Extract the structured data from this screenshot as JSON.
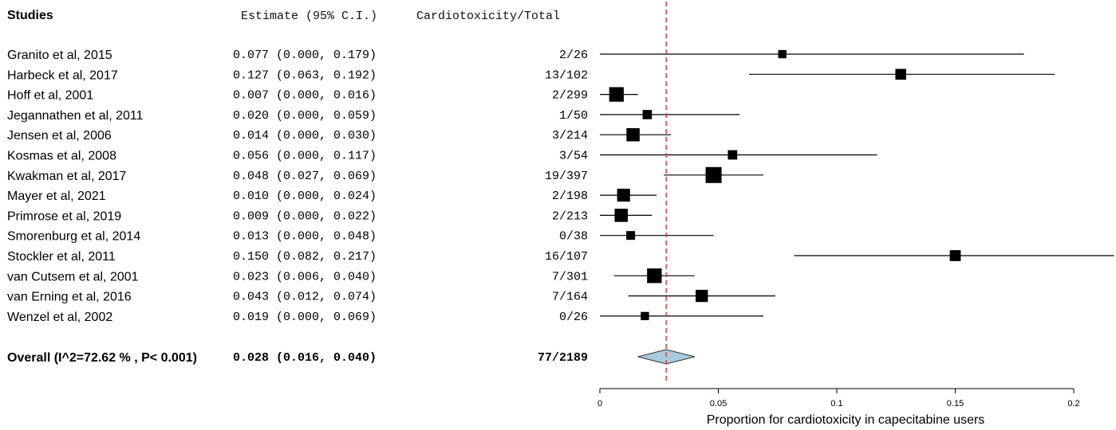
{
  "chart_data": {
    "type": "forest",
    "headers": {
      "studies": "Studies",
      "estimate": "Estimate (95% C.I.)",
      "events": "Cardiotoxicity/Total"
    },
    "studies": [
      {
        "label": "Granito et al, 2015",
        "estimate": 0.077,
        "lower": 0.0,
        "upper": 0.179,
        "ci_text": "0.077 (0.000, 0.179)",
        "events": "2/26",
        "weight": 26
      },
      {
        "label": "Harbeck et al, 2017",
        "estimate": 0.127,
        "lower": 0.063,
        "upper": 0.192,
        "ci_text": "0.127 (0.063, 0.192)",
        "events": "13/102",
        "weight": 102
      },
      {
        "label": "Hoff et al, 2001",
        "estimate": 0.007,
        "lower": 0.0,
        "upper": 0.016,
        "ci_text": "0.007 (0.000, 0.016)",
        "events": "2/299",
        "weight": 299
      },
      {
        "label": "Jegannathen et al, 2011",
        "estimate": 0.02,
        "lower": 0.0,
        "upper": 0.059,
        "ci_text": "0.020 (0.000, 0.059)",
        "events": "1/50",
        "weight": 50
      },
      {
        "label": "Jensen et al, 2006",
        "estimate": 0.014,
        "lower": 0.0,
        "upper": 0.03,
        "ci_text": "0.014 (0.000, 0.030)",
        "events": "3/214",
        "weight": 214
      },
      {
        "label": "Kosmas et al, 2008",
        "estimate": 0.056,
        "lower": 0.0,
        "upper": 0.117,
        "ci_text": "0.056 (0.000, 0.117)",
        "events": "3/54",
        "weight": 54
      },
      {
        "label": "Kwakman et al, 2017",
        "estimate": 0.048,
        "lower": 0.027,
        "upper": 0.069,
        "ci_text": "0.048 (0.027, 0.069)",
        "events": "19/397",
        "weight": 397
      },
      {
        "label": "Mayer et al, 2021",
        "estimate": 0.01,
        "lower": 0.0,
        "upper": 0.024,
        "ci_text": "0.010 (0.000, 0.024)",
        "events": "2/198",
        "weight": 198
      },
      {
        "label": "Primrose et al, 2019",
        "estimate": 0.009,
        "lower": 0.0,
        "upper": 0.022,
        "ci_text": "0.009 (0.000, 0.022)",
        "events": "2/213",
        "weight": 213
      },
      {
        "label": "Smorenburg et al, 2014",
        "estimate": 0.013,
        "lower": 0.0,
        "upper": 0.048,
        "ci_text": "0.013 (0.000, 0.048)",
        "events": "0/38",
        "weight": 38
      },
      {
        "label": "Stockler et al, 2011",
        "estimate": 0.15,
        "lower": 0.082,
        "upper": 0.217,
        "ci_text": "0.150 (0.082, 0.217)",
        "events": "16/107",
        "weight": 107
      },
      {
        "label": "van Cutsem et al, 2001",
        "estimate": 0.023,
        "lower": 0.006,
        "upper": 0.04,
        "ci_text": "0.023 (0.006, 0.040)",
        "events": "7/301",
        "weight": 301
      },
      {
        "label": "van Erning et al, 2016",
        "estimate": 0.043,
        "lower": 0.012,
        "upper": 0.074,
        "ci_text": "0.043 (0.012, 0.074)",
        "events": "7/164",
        "weight": 164
      },
      {
        "label": "Wenzel et al, 2002",
        "estimate": 0.019,
        "lower": 0.0,
        "upper": 0.069,
        "ci_text": "0.019 (0.000, 0.069)",
        "events": "0/26",
        "weight": 26
      }
    ],
    "overall": {
      "label": "Overall (I^2=72.62 % , P< 0.001)",
      "estimate": 0.028,
      "lower": 0.016,
      "upper": 0.04,
      "ci_text": "0.028 (0.016, 0.040)",
      "events": "77/2189"
    },
    "xaxis": {
      "label": "Proportion for cardiotoxicity in capecitabine users",
      "range": [
        0,
        0.22
      ],
      "ticks": [
        0,
        0.05,
        0.1,
        0.15,
        0.2
      ],
      "tick_labels": [
        "0",
        "0.05",
        "0.1",
        "0.15",
        "0.2"
      ]
    },
    "reference_line": 0.028,
    "colors": {
      "reference_line": "#e0403a",
      "diamond_fill": "#a8cbe0",
      "marks": "#000000"
    }
  }
}
